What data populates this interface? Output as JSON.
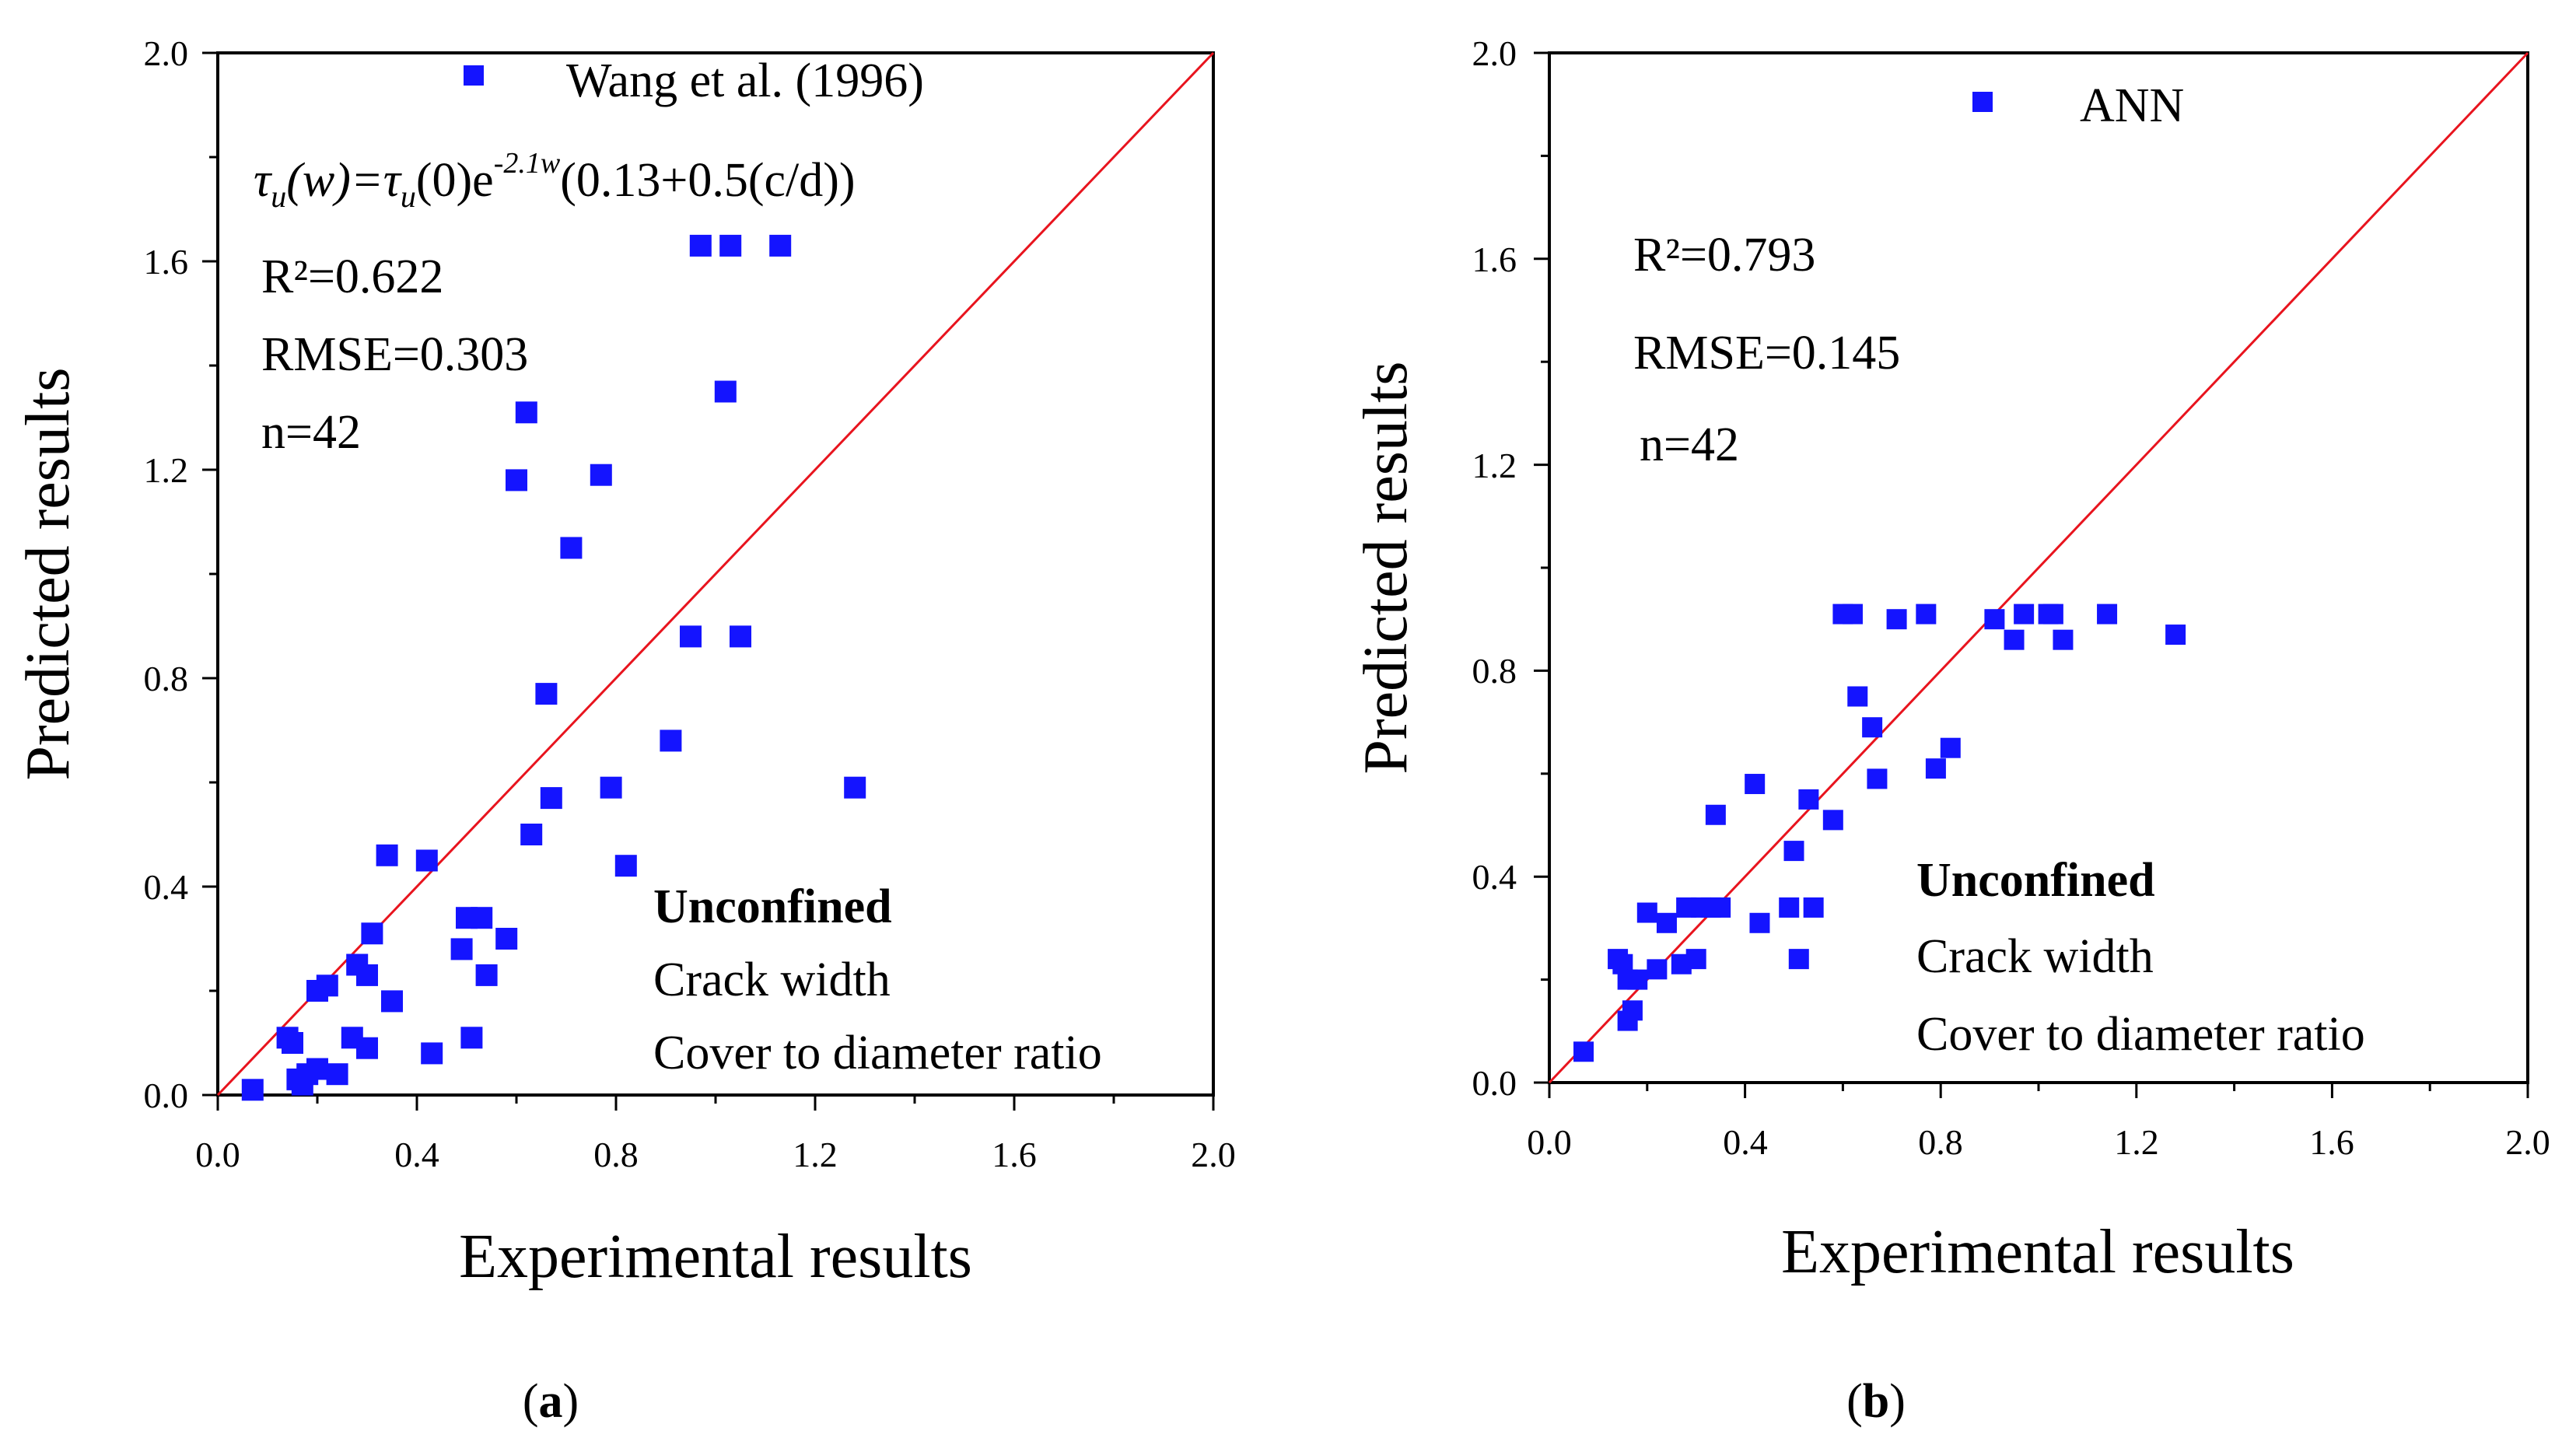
{
  "colors": {
    "marker": "#1414ff",
    "identity_line": "#e8141e",
    "axis": "#000000"
  },
  "chart_data": [
    {
      "type": "scatter",
      "panel_label": "a",
      "xlabel": "Experimental results",
      "ylabel": "Predicted results",
      "xlim": [
        0.0,
        2.0
      ],
      "ylim": [
        0.0,
        2.0
      ],
      "xticks": [
        "0.0",
        "0.4",
        "0.8",
        "1.2",
        "1.6",
        "2.0"
      ],
      "yticks": [
        "0.0",
        "0.4",
        "0.8",
        "1.2",
        "1.6",
        "2.0"
      ],
      "grid": false,
      "legend": {
        "label": "Wang et al. (1996)",
        "placement": "top"
      },
      "formula": {
        "tau1": "τ",
        "sub_u1": "u",
        "w_arg": "(w)=",
        "tau2": "τ",
        "sub_u2": "u",
        "zero_arg": "(0)e",
        "exp": "-2.1w",
        "rest": "(0.13+0.5(c/d))"
      },
      "stats": [
        "R²=0.622",
        "RMSE=0.303",
        "n=42"
      ],
      "notes": {
        "title": "Unconfined",
        "line1": "Crack width",
        "line2": "Cover to diameter ratio"
      },
      "identity_line": true,
      "series": [
        {
          "name": "Wang et al. (1996)",
          "points": [
            [
              0.07,
              0.01
            ],
            [
              0.14,
              0.11
            ],
            [
              0.15,
              0.1
            ],
            [
              0.16,
              0.03
            ],
            [
              0.17,
              0.02
            ],
            [
              0.18,
              0.04
            ],
            [
              0.2,
              0.2
            ],
            [
              0.2,
              0.05
            ],
            [
              0.22,
              0.21
            ],
            [
              0.24,
              0.04
            ],
            [
              0.27,
              0.11
            ],
            [
              0.28,
              0.25
            ],
            [
              0.3,
              0.09
            ],
            [
              0.3,
              0.23
            ],
            [
              0.31,
              0.31
            ],
            [
              0.34,
              0.46
            ],
            [
              0.35,
              0.18
            ],
            [
              0.42,
              0.45
            ],
            [
              0.43,
              0.08
            ],
            [
              0.49,
              0.28
            ],
            [
              0.5,
              0.34
            ],
            [
              0.51,
              0.11
            ],
            [
              0.53,
              0.34
            ],
            [
              0.54,
              0.23
            ],
            [
              0.58,
              0.3
            ],
            [
              0.6,
              1.18
            ],
            [
              0.62,
              1.31
            ],
            [
              0.63,
              0.5
            ],
            [
              0.66,
              0.77
            ],
            [
              0.67,
              0.57
            ],
            [
              0.71,
              1.05
            ],
            [
              0.77,
              1.19
            ],
            [
              0.79,
              0.59
            ],
            [
              0.82,
              0.44
            ],
            [
              0.91,
              0.68
            ],
            [
              0.95,
              0.88
            ],
            [
              0.97,
              1.63
            ],
            [
              1.02,
              1.35
            ],
            [
              1.03,
              1.63
            ],
            [
              1.05,
              0.88
            ],
            [
              1.13,
              1.63
            ],
            [
              1.28,
              0.59
            ]
          ]
        }
      ]
    },
    {
      "type": "scatter",
      "panel_label": "b",
      "xlabel": "Experimental results",
      "ylabel": "Predicted results",
      "xlim": [
        0.0,
        2.0
      ],
      "ylim": [
        0.0,
        2.0
      ],
      "xticks": [
        "0.0",
        "0.4",
        "0.8",
        "1.2",
        "1.6",
        "2.0"
      ],
      "yticks": [
        "0.0",
        "0.4",
        "0.8",
        "1.2",
        "1.6",
        "2.0"
      ],
      "grid": false,
      "legend": {
        "label": "ANN",
        "placement": "top"
      },
      "stats": [
        "R²=0.793",
        "RMSE=0.145",
        "n=42"
      ],
      "notes": {
        "title": "Unconfined",
        "line1": "Crack width",
        "line2": "Cover to diameter ratio"
      },
      "identity_line": true,
      "series": [
        {
          "name": "ANN",
          "points": [
            [
              0.07,
              0.06
            ],
            [
              0.14,
              0.24
            ],
            [
              0.15,
              0.23
            ],
            [
              0.16,
              0.2
            ],
            [
              0.16,
              0.12
            ],
            [
              0.17,
              0.14
            ],
            [
              0.18,
              0.2
            ],
            [
              0.2,
              0.33
            ],
            [
              0.22,
              0.22
            ],
            [
              0.24,
              0.31
            ],
            [
              0.27,
              0.23
            ],
            [
              0.28,
              0.34
            ],
            [
              0.3,
              0.24
            ],
            [
              0.31,
              0.34
            ],
            [
              0.33,
              0.34
            ],
            [
              0.34,
              0.52
            ],
            [
              0.35,
              0.34
            ],
            [
              0.42,
              0.58
            ],
            [
              0.43,
              0.31
            ],
            [
              0.49,
              0.34
            ],
            [
              0.5,
              0.45
            ],
            [
              0.51,
              0.24
            ],
            [
              0.53,
              0.55
            ],
            [
              0.54,
              0.34
            ],
            [
              0.58,
              0.51
            ],
            [
              0.6,
              0.91
            ],
            [
              0.62,
              0.91
            ],
            [
              0.63,
              0.75
            ],
            [
              0.66,
              0.69
            ],
            [
              0.67,
              0.59
            ],
            [
              0.71,
              0.9
            ],
            [
              0.77,
              0.91
            ],
            [
              0.79,
              0.61
            ],
            [
              0.82,
              0.65
            ],
            [
              0.91,
              0.9
            ],
            [
              0.95,
              0.86
            ],
            [
              0.97,
              0.91
            ],
            [
              1.02,
              0.91
            ],
            [
              1.03,
              0.91
            ],
            [
              1.05,
              0.86
            ],
            [
              1.14,
              0.91
            ],
            [
              1.28,
              0.87
            ]
          ]
        }
      ]
    }
  ]
}
